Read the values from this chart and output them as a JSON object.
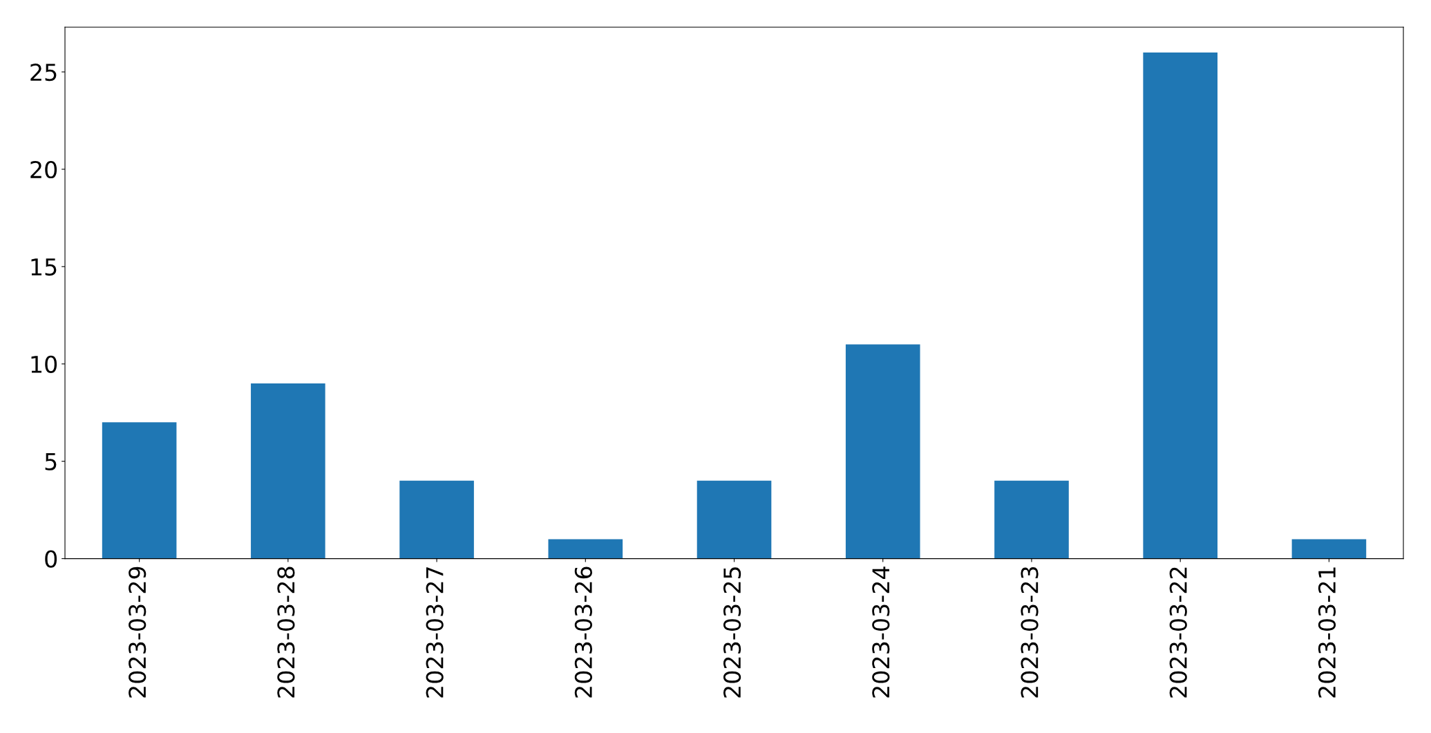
{
  "chart_data": {
    "type": "bar",
    "categories": [
      "2023-03-29",
      "2023-03-28",
      "2023-03-27",
      "2023-03-26",
      "2023-03-25",
      "2023-03-24",
      "2023-03-23",
      "2023-03-22",
      "2023-03-21"
    ],
    "values": [
      7,
      9,
      4,
      1,
      4,
      11,
      4,
      26,
      1
    ],
    "color": "#1f77b4",
    "ylim": [
      0,
      27.3
    ],
    "yticks": [
      0,
      5,
      10,
      15,
      20,
      25
    ],
    "grid": false,
    "legend": false
  }
}
